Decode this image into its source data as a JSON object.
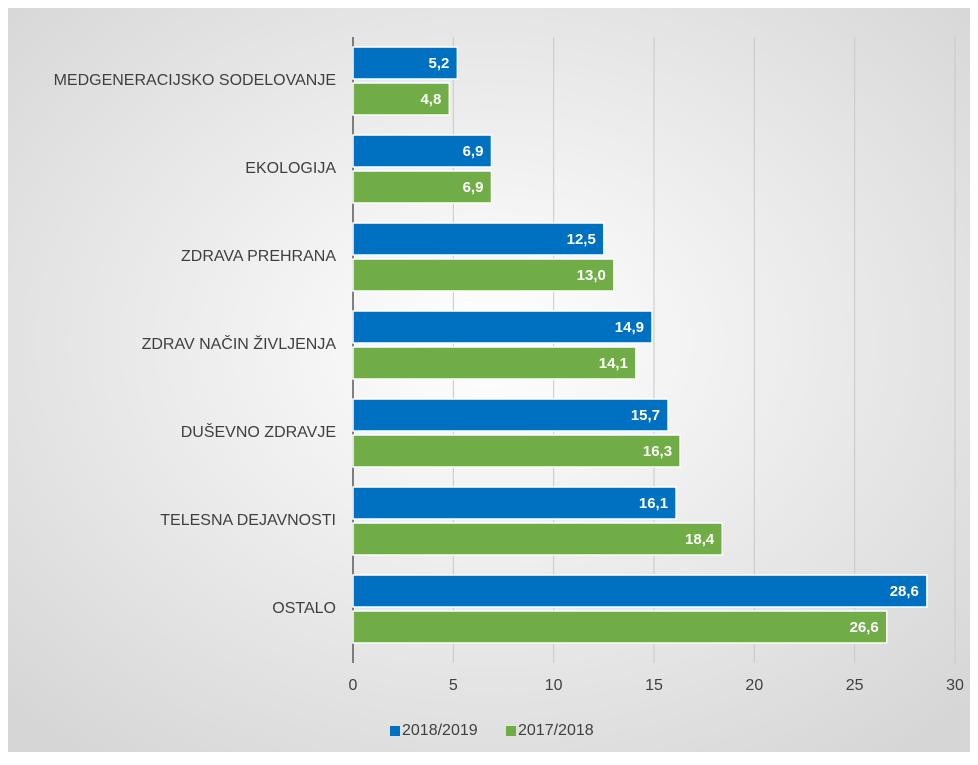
{
  "chart_data": {
    "type": "bar",
    "orientation": "horizontal",
    "categories": [
      "MEDGENERACIJSKO SODELOVANJE",
      "EKOLOGIJA",
      "ZDRAVA PREHRANA",
      "ZDRAV NAČIN ŽIVLJENJA",
      "DUŠEVNO ZDRAVJE",
      "TELESNA DEJAVNOSTI",
      "OSTALO"
    ],
    "series": [
      {
        "name": "2018/2019",
        "color": "#0070c0",
        "values": [
          5.2,
          6.9,
          12.5,
          14.9,
          15.7,
          16.1,
          28.6
        ],
        "value_labels": [
          "5,2",
          "6,9",
          "12,5",
          "14,9",
          "15,7",
          "16,1",
          "28,6"
        ]
      },
      {
        "name": "2017/2018",
        "color": "#70ad47",
        "values": [
          4.8,
          6.9,
          13.0,
          14.1,
          16.3,
          18.4,
          26.6
        ],
        "value_labels": [
          "4,8",
          "6,9",
          "13,0",
          "14,1",
          "16,3",
          "18,4",
          "26,6"
        ]
      }
    ],
    "xlim": [
      0,
      30
    ],
    "xticks": [
      0,
      5,
      10,
      15,
      20,
      25,
      30
    ],
    "grid": true,
    "legend": "bottom"
  }
}
